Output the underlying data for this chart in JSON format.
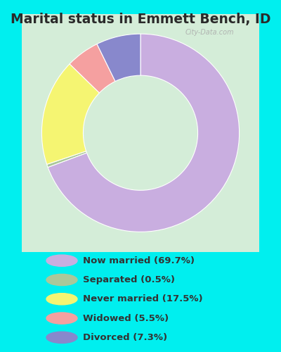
{
  "title": "Marital status in Emmett Bench, ID",
  "title_fontsize": 13.5,
  "bg_outer": "#00EFEF",
  "bg_chart_color": "#d4edd8",
  "watermark": "City-Data.com",
  "categories": [
    "Now married",
    "Separated",
    "Never married",
    "Widowed",
    "Divorced"
  ],
  "values": [
    69.7,
    0.5,
    17.5,
    5.5,
    7.3
  ],
  "colors": [
    "#c9aee0",
    "#aac89a",
    "#f5f572",
    "#f5a0a0",
    "#8888cc"
  ],
  "legend_labels": [
    "Now married (69.7%)",
    "Separated (0.5%)",
    "Never married (17.5%)",
    "Widowed (5.5%)",
    "Divorced (7.3%)"
  ],
  "donut_width": 0.42,
  "startangle": 90
}
